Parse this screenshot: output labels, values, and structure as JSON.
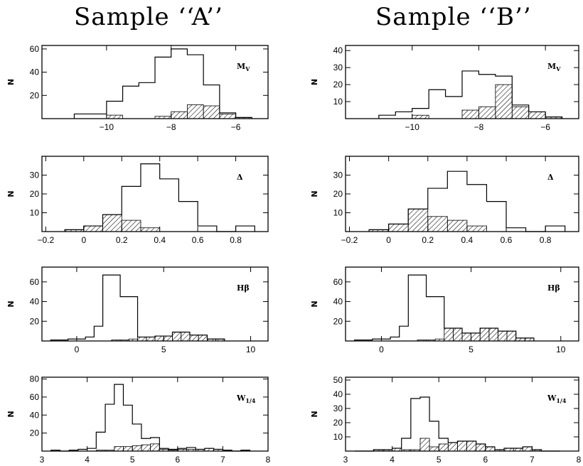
{
  "titles": {
    "left": "Sample ‘‘A’’",
    "right": "Sample ‘‘B’’"
  },
  "chart_data": [
    {
      "type": "histogram",
      "sample": "A",
      "ylabel": "N",
      "label": "M",
      "label_sub": "V",
      "xlim": [
        -12,
        -5
      ],
      "ylim": [
        0,
        63
      ],
      "xticks": [
        -10,
        -8,
        -6
      ],
      "xtick_labels": [
        "−10",
        "−8",
        "−6"
      ],
      "yticks": [
        20,
        40,
        60
      ],
      "ytick_labels": [
        "20",
        "40",
        "60"
      ],
      "bins": [
        -11,
        -10.5,
        -10,
        -9.5,
        -9,
        -8.5,
        -8,
        -7.5,
        -7,
        -6.5,
        -6,
        -5.5
      ],
      "open": [
        4,
        4,
        15,
        28,
        31,
        53,
        60,
        55,
        29,
        5,
        1
      ],
      "hatched": [
        0,
        0,
        3,
        0,
        0,
        2,
        6,
        12,
        11,
        4,
        1
      ]
    },
    {
      "type": "histogram",
      "sample": "A",
      "ylabel": "N",
      "label": "Δ",
      "label_sub": "",
      "xlim": [
        -0.22,
        0.97
      ],
      "ylim": [
        0,
        40
      ],
      "xticks": [
        -0.2,
        0,
        0.2,
        0.4,
        0.6,
        0.8
      ],
      "xtick_labels": [
        "−0.2",
        "0",
        "0.2",
        "0.4",
        "0.6",
        "0.8"
      ],
      "yticks": [
        10,
        20,
        30
      ],
      "ytick_labels": [
        "10",
        "20",
        "30"
      ],
      "bins": [
        -0.1,
        0,
        0.1,
        0.2,
        0.3,
        0.4,
        0.5,
        0.6,
        0.7,
        0.8,
        0.9
      ],
      "open": [
        1,
        3,
        9,
        24,
        36,
        28,
        16,
        3,
        0,
        3
      ],
      "hatched": [
        1,
        3,
        9,
        6,
        2,
        0,
        0,
        0,
        0,
        0
      ]
    },
    {
      "type": "histogram",
      "sample": "A",
      "ylabel": "N",
      "label": "Hβ",
      "label_sub": "",
      "xlim": [
        -2,
        11
      ],
      "ylim": [
        0,
        75
      ],
      "xticks": [
        0,
        5,
        10
      ],
      "xtick_labels": [
        "0",
        "5",
        "10"
      ],
      "yticks": [
        20,
        40,
        60
      ],
      "ytick_labels": [
        "20",
        "40",
        "60"
      ],
      "bins": [
        -1.5,
        -1,
        -0.5,
        0,
        0.5,
        1,
        1.5,
        2,
        2.5,
        3,
        3.5,
        4,
        4.5,
        5,
        5.5,
        6,
        6.5,
        7,
        7.5,
        8,
        8.5
      ],
      "open": [
        1,
        1,
        2,
        2,
        4,
        15,
        67,
        67,
        45,
        45,
        4,
        4,
        5,
        5,
        9,
        9,
        6,
        6,
        2,
        2
      ],
      "hatched": [
        0,
        0,
        0,
        0,
        0,
        0,
        0,
        1,
        1,
        2,
        4,
        4,
        5,
        5,
        9,
        9,
        6,
        6,
        2,
        2
      ]
    },
    {
      "type": "histogram",
      "sample": "A",
      "ylabel": "N",
      "label": "W",
      "label_sub": "1/4",
      "xlim": [
        3,
        8
      ],
      "ylim": [
        0,
        82
      ],
      "xticks": [
        3,
        4,
        5,
        6,
        7,
        8
      ],
      "xtick_labels": [
        "3",
        "4",
        "5",
        "6",
        "7",
        "8"
      ],
      "yticks": [
        20,
        40,
        60,
        80
      ],
      "ytick_labels": [
        "20",
        "40",
        "60",
        "80"
      ],
      "bins": [
        3.2,
        3.4,
        3.6,
        3.8,
        4,
        4.2,
        4.4,
        4.6,
        4.8,
        5,
        5.2,
        5.4,
        5.6,
        5.8,
        6,
        6.2,
        6.4,
        6.6,
        6.8,
        7,
        7.2,
        7.4,
        7.6
      ],
      "open": [
        1,
        0,
        1,
        2,
        3,
        21,
        52,
        74,
        51,
        30,
        14,
        15,
        3,
        2,
        3,
        4,
        2,
        3,
        2,
        1,
        0,
        1
      ],
      "hatched": [
        0,
        0,
        0,
        0,
        0,
        1,
        1,
        5,
        5,
        6,
        7,
        8,
        2,
        1,
        2,
        2,
        2,
        3,
        2,
        1,
        0,
        1
      ]
    },
    {
      "type": "histogram",
      "sample": "B",
      "ylabel": "N",
      "label": "M",
      "label_sub": "V",
      "xlim": [
        -12,
        -5
      ],
      "ylim": [
        0,
        43
      ],
      "xticks": [
        -10,
        -8,
        -6
      ],
      "xtick_labels": [
        "−10",
        "−8",
        "−6"
      ],
      "yticks": [
        10,
        20,
        30,
        40
      ],
      "ytick_labels": [
        "10",
        "20",
        "30",
        "40"
      ],
      "bins": [
        -11,
        -10.5,
        -10,
        -9.5,
        -9,
        -8.5,
        -8,
        -7.5,
        -7,
        -6.5,
        -6,
        -5.5
      ],
      "open": [
        2,
        4,
        6,
        17,
        13,
        28,
        26,
        25,
        8,
        4,
        1
      ],
      "hatched": [
        0,
        0,
        2,
        0,
        0,
        5,
        7,
        20,
        7,
        4,
        1
      ]
    },
    {
      "type": "histogram",
      "sample": "B",
      "ylabel": "N",
      "label": "Δ",
      "label_sub": "",
      "xlim": [
        -0.22,
        0.97
      ],
      "ylim": [
        0,
        40
      ],
      "xticks": [
        -0.2,
        0,
        0.2,
        0.4,
        0.6,
        0.8
      ],
      "xtick_labels": [
        "−0.2",
        "0",
        "0.2",
        "0.4",
        "0.6",
        "0.8"
      ],
      "yticks": [
        10,
        20,
        30
      ],
      "ytick_labels": [
        "10",
        "20",
        "30"
      ],
      "bins": [
        -0.1,
        0,
        0.1,
        0.2,
        0.3,
        0.4,
        0.5,
        0.6,
        0.7,
        0.8,
        0.9
      ],
      "open": [
        1,
        4,
        12,
        23,
        32,
        25,
        16,
        2,
        0,
        3
      ],
      "hatched": [
        1,
        4,
        12,
        8,
        6,
        3,
        0,
        0,
        0,
        0
      ]
    },
    {
      "type": "histogram",
      "sample": "B",
      "ylabel": "N",
      "label": "Hβ",
      "label_sub": "",
      "xlim": [
        -2,
        11
      ],
      "ylim": [
        0,
        75
      ],
      "xticks": [
        0,
        5,
        10
      ],
      "xtick_labels": [
        "0",
        "5",
        "10"
      ],
      "yticks": [
        20,
        40,
        60
      ],
      "ytick_labels": [
        "20",
        "40",
        "60"
      ],
      "bins": [
        -1.5,
        -1,
        -0.5,
        0,
        0.5,
        1,
        1.5,
        2,
        2.5,
        3,
        3.5,
        4,
        4.5,
        5,
        5.5,
        6,
        6.5,
        7,
        7.5,
        8,
        8.5
      ],
      "open": [
        1,
        1,
        2,
        2,
        4,
        15,
        67,
        67,
        45,
        45,
        13,
        13,
        8,
        8,
        13,
        13,
        10,
        10,
        3,
        3
      ],
      "hatched": [
        0,
        0,
        0,
        0,
        0,
        0,
        0,
        1,
        1,
        2,
        13,
        13,
        8,
        8,
        13,
        13,
        10,
        10,
        3,
        3
      ]
    },
    {
      "type": "histogram",
      "sample": "B",
      "ylabel": "N",
      "label": "W",
      "label_sub": "1/4",
      "xlim": [
        3,
        8
      ],
      "ylim": [
        0,
        52
      ],
      "xticks": [
        3,
        4,
        5,
        6,
        7,
        8
      ],
      "xtick_labels": [
        "3",
        "4",
        "5",
        "6",
        "7",
        "8"
      ],
      "yticks": [
        10,
        20,
        30,
        40,
        50
      ],
      "ytick_labels": [
        "10",
        "20",
        "30",
        "40",
        "50"
      ],
      "bins": [
        3.2,
        3.4,
        3.6,
        3.8,
        4,
        4.2,
        4.4,
        4.6,
        4.8,
        5,
        5.2,
        5.4,
        5.6,
        5.8,
        6,
        6.2,
        6.4,
        6.6,
        6.8,
        7,
        7.2,
        7.4,
        7.6
      ],
      "open": [
        0,
        0,
        1,
        1,
        2,
        9,
        37,
        38,
        21,
        9,
        6,
        7,
        7,
        5,
        3,
        1,
        2,
        2,
        3,
        1,
        0,
        0
      ],
      "hatched": [
        0,
        0,
        1,
        1,
        2,
        1,
        1,
        9,
        3,
        5,
        6,
        7,
        7,
        5,
        3,
        1,
        2,
        2,
        3,
        1,
        0,
        0
      ]
    }
  ]
}
